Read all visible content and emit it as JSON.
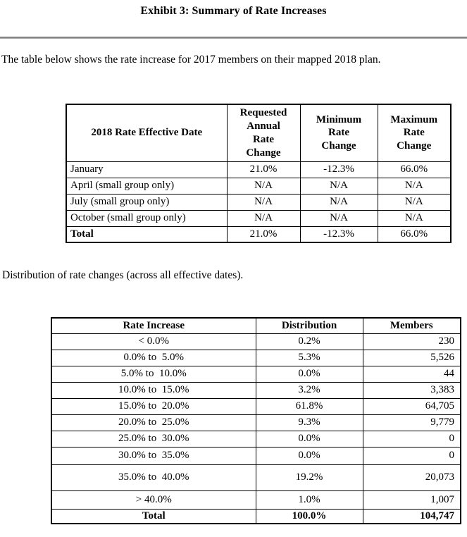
{
  "page": {
    "title": "Exhibit 3: Summary of Rate Increases",
    "intro_text": "The table below shows the rate increase for 2017 members on their mapped 2018 plan.",
    "distribution_caption": "Distribution of rate changes (across all effective dates)."
  },
  "rate_table": {
    "headers": [
      "2018 Rate Effective Date",
      "Requested\nAnnual\nRate\nChange",
      "Minimum\nRate\nChange",
      "Maximum\nRate\nChange"
    ],
    "rows": [
      {
        "label": "January",
        "requested": "21.0%",
        "minimum": "-12.3%",
        "maximum": "66.0%",
        "is_total": false
      },
      {
        "label": "April (small group only)",
        "requested": "N/A",
        "minimum": "N/A",
        "maximum": "N/A",
        "is_total": false
      },
      {
        "label": "July (small group only)",
        "requested": "N/A",
        "minimum": "N/A",
        "maximum": "N/A",
        "is_total": false
      },
      {
        "label": "October (small group only)",
        "requested": "N/A",
        "minimum": "N/A",
        "maximum": "N/A",
        "is_total": false
      },
      {
        "label": "Total",
        "requested": "21.0%",
        "minimum": "-12.3%",
        "maximum": "66.0%",
        "is_total": true
      }
    ]
  },
  "distribution_table": {
    "headers": [
      "Rate Increase",
      "Distribution",
      "Members"
    ],
    "rows": [
      {
        "range": "< 0.0%",
        "distribution": "0.2%",
        "members": "230",
        "is_total": false
      },
      {
        "range": "0.0% to  5.0%",
        "distribution": "5.3%",
        "members": "5,526",
        "is_total": false
      },
      {
        "range": "5.0% to  10.0%",
        "distribution": "0.0%",
        "members": "44",
        "is_total": false
      },
      {
        "range": "10.0% to  15.0%",
        "distribution": "3.2%",
        "members": "3,383",
        "is_total": false
      },
      {
        "range": "15.0% to  20.0%",
        "distribution": "61.8%",
        "members": "64,705",
        "is_total": false
      },
      {
        "range": "20.0% to  25.0%",
        "distribution": "9.3%",
        "members": "9,779",
        "is_total": false
      },
      {
        "range": "25.0% to  30.0%",
        "distribution": "0.0%",
        "members": "0",
        "is_total": false
      },
      {
        "range": "30.0% to  35.0%",
        "distribution": "0.0%",
        "members": "0",
        "is_total": false
      },
      {
        "range": "35.0% to  40.0%",
        "distribution": "19.2%",
        "members": "20,073",
        "is_total": false
      },
      {
        "range": "> 40.0%",
        "distribution": "1.0%",
        "members": "1,007",
        "is_total": false
      },
      {
        "range": "Total",
        "distribution": "100.0%",
        "members": "104,747",
        "is_total": true
      }
    ]
  }
}
